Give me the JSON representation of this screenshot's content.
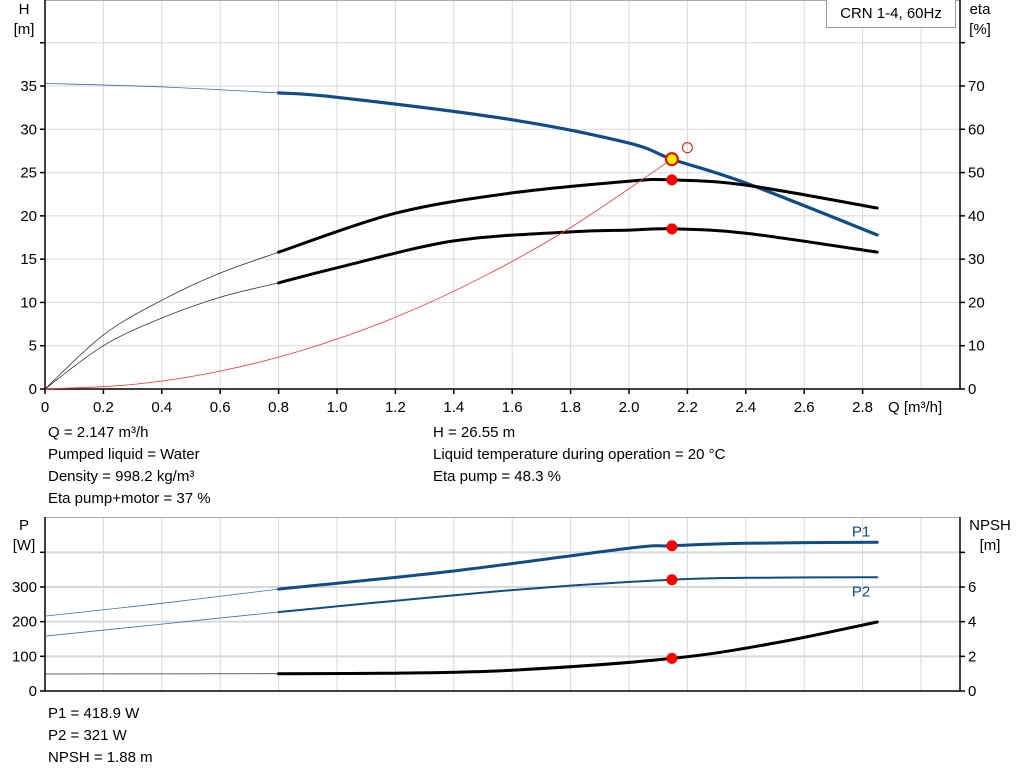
{
  "legend_label": "CRN 1-4, 60Hz",
  "info_upper_left": [
    "Q = 2.147 m³/h",
    "Pumped liquid = Water",
    "Density = 998.2 kg/m³",
    "Eta pump+motor = 37 %"
  ],
  "info_upper_right": [
    "H = 26.55 m",
    "Liquid temperature during operation = 20 °C",
    "Eta pump = 48.3 %"
  ],
  "info_lower": [
    "P1 = 418.9 W",
    "P2 = 321 W",
    "NPSH = 1.88 m"
  ],
  "colors": {
    "head": "#0f4c8a",
    "eta": "#000000",
    "system": "#ff3030",
    "op_point": "#ff0000",
    "op_fill": "#ffee00",
    "grid": "#d8d8d8",
    "power": "#0f4c8a",
    "npsh": "#000000"
  },
  "chart_data": [
    {
      "type": "line",
      "title": "",
      "xlabel": "Q [m³/h]",
      "ylabel": "H\n[m]",
      "y2label": "eta\n[%]",
      "xlim": [
        0,
        3.0
      ],
      "ylim": [
        0,
        40
      ],
      "y2lim": [
        0,
        80
      ],
      "xticks": [
        "0",
        "0.2",
        "0.4",
        "0.6",
        "0.8",
        "1.0",
        "1.2",
        "1.4",
        "1.6",
        "1.8",
        "2.0",
        "2.2",
        "2.4",
        "2.6",
        "2.8"
      ],
      "yticks": [
        "0",
        "5",
        "10",
        "15",
        "20",
        "25",
        "30",
        "35"
      ],
      "y2ticks": [
        "0",
        "10",
        "20",
        "30",
        "40",
        "50",
        "60",
        "70"
      ],
      "grid": true,
      "series": [
        {
          "axis": "left",
          "color": "#0f4c8a",
          "extrapolated_below_q": 0.8,
          "x": [
            0,
            0.4,
            0.8,
            1.0,
            1.6,
            2.0,
            2.147,
            2.4,
            2.85
          ],
          "y": [
            35.3,
            34.9,
            34.2,
            33.7,
            31.1,
            28.4,
            26.55,
            23.8,
            17.8
          ]
        },
        {
          "axis": "right",
          "color": "#000000",
          "extrapolated_below_q": 0.8,
          "x": [
            0,
            0.2,
            0.4,
            0.6,
            0.8,
            1.2,
            1.6,
            2.0,
            2.147,
            2.4,
            2.85
          ],
          "y": [
            0,
            12.5,
            20.5,
            26.8,
            31.6,
            40.6,
            45.3,
            48.0,
            48.3,
            47.1,
            41.8
          ]
        },
        {
          "axis": "right",
          "color": "#000000",
          "extrapolated_below_q": 0.8,
          "x": [
            0,
            0.2,
            0.4,
            0.6,
            0.8,
            1.0,
            1.4,
            1.8,
            2.0,
            2.147,
            2.4,
            2.85
          ],
          "y": [
            0,
            10.0,
            16.4,
            21.2,
            24.5,
            28.0,
            34.2,
            36.3,
            36.7,
            37.0,
            36.0,
            31.6
          ]
        },
        {
          "axis": "left",
          "color": "#ff3030",
          "system_curve": true,
          "x": [
            0,
            0.3,
            0.6,
            0.9,
            1.2,
            1.5,
            1.8,
            2.147
          ],
          "y": [
            0,
            0.52,
            2.07,
            4.67,
            8.29,
            12.96,
            18.66,
            26.55
          ]
        }
      ],
      "points": [
        {
          "q": 2.147,
          "value": 26.55,
          "axis": "left",
          "style": "duty"
        },
        {
          "q": 2.2,
          "value": 27.88,
          "axis": "left",
          "style": "open"
        },
        {
          "q": 2.147,
          "value": 48.3,
          "axis": "right",
          "style": "dot"
        },
        {
          "q": 2.147,
          "value": 37.0,
          "axis": "right",
          "style": "dot"
        }
      ]
    },
    {
      "type": "line",
      "title": "",
      "xlabel": "",
      "ylabel": "P\n[W]",
      "y2label": "NPSH\n[m]",
      "xlim": [
        0,
        3.0
      ],
      "ylim": [
        0,
        500
      ],
      "y2lim": [
        0,
        10
      ],
      "yticks": [
        "0",
        "100",
        "200",
        "300"
      ],
      "y2ticks": [
        "0",
        "2",
        "4",
        "6"
      ],
      "grid": true,
      "series": [
        {
          "name": "P1",
          "axis": "left",
          "color": "#0f4c8a",
          "extrapolated_below_q": 0.8,
          "x": [
            0,
            0.4,
            0.8,
            1.4,
            2.0,
            2.147,
            2.4,
            2.85
          ],
          "y": [
            216,
            253,
            294,
            346,
            412,
            418.9,
            426,
            429
          ]
        },
        {
          "name": "P2",
          "axis": "left",
          "color": "#0f4c8a",
          "extrapolated_below_q": 0.8,
          "x": [
            0,
            0.4,
            0.8,
            1.6,
            2.147,
            2.5,
            2.85
          ],
          "y": [
            158,
            193,
            228,
            291,
            321,
            327,
            328
          ]
        },
        {
          "axis": "right",
          "color": "#000000",
          "extrapolated_below_q": 0.8,
          "x": [
            0,
            0.8,
            1.2,
            1.6,
            2.147,
            2.5,
            2.85
          ],
          "y": [
            0.98,
            1.0,
            1.03,
            1.2,
            1.88,
            2.77,
            3.98
          ]
        }
      ],
      "points": [
        {
          "q": 2.147,
          "value": 418.9,
          "axis": "left",
          "style": "dot"
        },
        {
          "q": 2.147,
          "value": 321,
          "axis": "left",
          "style": "dot"
        },
        {
          "q": 2.147,
          "value": 1.88,
          "axis": "right",
          "style": "dot"
        }
      ]
    }
  ]
}
